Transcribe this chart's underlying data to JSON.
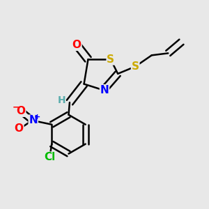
{
  "background_color": "#e8e8e8",
  "fig_size": [
    3.0,
    3.0
  ],
  "dpi": 100,
  "atom_colors": {
    "C": "#000000",
    "H": "#5aadad",
    "N": "#0000ff",
    "O": "#ff0000",
    "S": "#ccaa00",
    "Cl": "#00bb00"
  },
  "bond_color": "#000000",
  "bond_width": 1.8,
  "dbo": 0.018
}
